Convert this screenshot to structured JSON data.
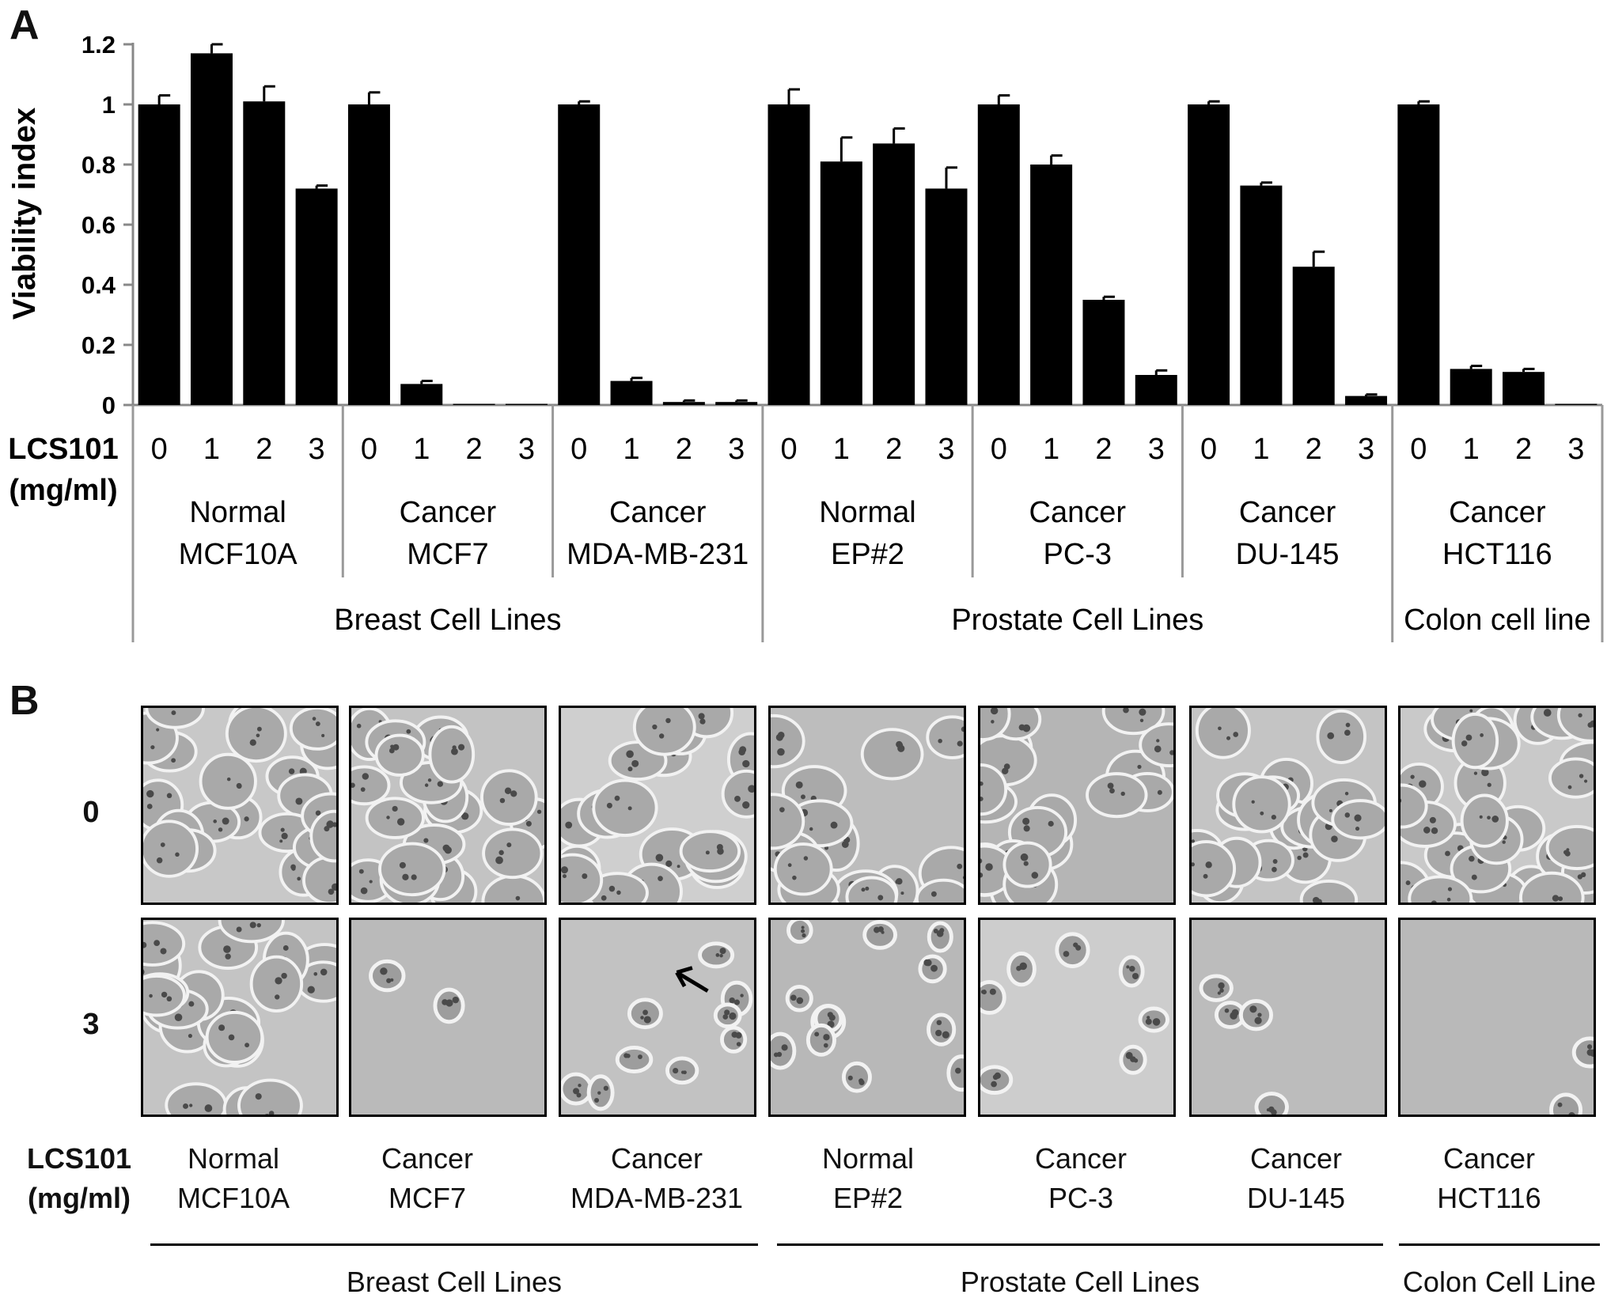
{
  "panels": {
    "a": "A",
    "b": "B"
  },
  "chart_data": {
    "type": "bar",
    "ylabel": "Viability index",
    "ylim": [
      0,
      1.2
    ],
    "yticks": [
      "0",
      "0.2",
      "0.4",
      "0.6",
      "0.8",
      "1",
      "1.2"
    ],
    "dose_label_line1": "LCS101",
    "dose_label_line2": "(mg/ml)",
    "doses": [
      "0",
      "1",
      "2",
      "3"
    ],
    "bar_color": "#000000",
    "cell_lines": [
      {
        "line1": "Normal",
        "line2": "MCF10A",
        "values": [
          1.0,
          1.17,
          1.01,
          0.72
        ],
        "errors": [
          0.03,
          0.03,
          0.05,
          0.01
        ]
      },
      {
        "line1": "Cancer",
        "line2": "MCF7",
        "values": [
          1.0,
          0.07,
          0.0,
          0.0
        ],
        "errors": [
          0.04,
          0.01,
          0.0,
          0.0
        ]
      },
      {
        "line1": "Cancer",
        "line2": "MDA-MB-231",
        "values": [
          1.0,
          0.08,
          0.01,
          0.01
        ],
        "errors": [
          0.01,
          0.01,
          0.005,
          0.005
        ]
      },
      {
        "line1": "Normal",
        "line2": "EP#2",
        "values": [
          1.0,
          0.81,
          0.87,
          0.72
        ],
        "errors": [
          0.05,
          0.08,
          0.05,
          0.07
        ]
      },
      {
        "line1": "Cancer",
        "line2": "PC-3",
        "values": [
          1.0,
          0.8,
          0.35,
          0.1
        ],
        "errors": [
          0.03,
          0.03,
          0.01,
          0.015
        ]
      },
      {
        "line1": "Cancer",
        "line2": "DU-145",
        "values": [
          1.0,
          0.73,
          0.46,
          0.03
        ],
        "errors": [
          0.01,
          0.01,
          0.05,
          0.005
        ]
      },
      {
        "line1": "Cancer",
        "line2": "HCT116",
        "values": [
          1.0,
          0.12,
          0.11,
          0.0
        ],
        "errors": [
          0.01,
          0.01,
          0.01,
          0.0
        ]
      }
    ],
    "groups": [
      {
        "label": "Breast Cell Lines",
        "span": [
          0,
          2
        ]
      },
      {
        "label": "Prostate Cell Lines",
        "span": [
          3,
          5
        ]
      },
      {
        "label": "Colon cell line",
        "span": [
          6,
          6
        ]
      }
    ]
  },
  "panel_b": {
    "row_labels": [
      "0",
      "3"
    ],
    "dose_label_line1": "LCS101",
    "dose_label_line2": "(mg/ml)",
    "columns": [
      {
        "line1": "Normal",
        "line2": "MCF10A"
      },
      {
        "line1": "Cancer",
        "line2": "MCF7"
      },
      {
        "line1": "Cancer",
        "line2": "MDA-MB-231"
      },
      {
        "line1": "Normal",
        "line2": "EP#2"
      },
      {
        "line1": "Cancer",
        "line2": "PC-3"
      },
      {
        "line1": "Cancer",
        "line2": "DU-145"
      },
      {
        "line1": "Cancer",
        "line2": "HCT116"
      }
    ],
    "groups": [
      {
        "label": "Breast Cell Lines"
      },
      {
        "label": "Prostate Cell Lines"
      },
      {
        "label": "Colon Cell Line"
      }
    ]
  }
}
